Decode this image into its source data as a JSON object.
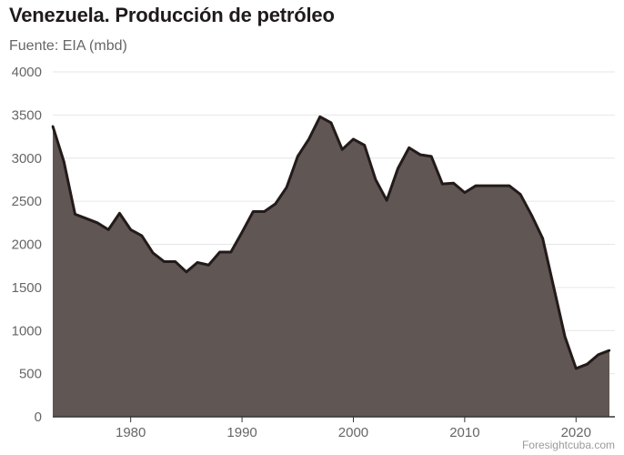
{
  "header": {
    "title": "Venezuela. Producción de petróleo",
    "subtitle": "Fuente: EIA (mbd)"
  },
  "credit": "Foresightcuba.com",
  "colors": {
    "area_fill": "#605654",
    "line": "#231a1a",
    "grid": "#e6e6e6",
    "axis": "#333333",
    "tick_text": "#666666"
  },
  "chart_data": {
    "type": "area",
    "title": "Venezuela. Producción de petróleo",
    "subtitle": "Fuente: EIA (mbd)",
    "xlabel": "",
    "ylabel": "",
    "xlim": [
      1973,
      2023
    ],
    "ylim": [
      0,
      4000
    ],
    "x_ticks": [
      1980,
      1990,
      2000,
      2010,
      2020
    ],
    "y_ticks": [
      0,
      500,
      1000,
      1500,
      2000,
      2500,
      3000,
      3500,
      4000
    ],
    "grid": true,
    "legend": "none",
    "series": [
      {
        "x": [
          1973,
          1974,
          1975,
          1976,
          1977,
          1978,
          1979,
          1980,
          1981,
          1982,
          1983,
          1984,
          1985,
          1986,
          1987,
          1988,
          1989,
          1990,
          1991,
          1992,
          1993,
          1994,
          1995,
          1996,
          1997,
          1998,
          1999,
          2000,
          2001,
          2002,
          2003,
          2004,
          2005,
          2006,
          2007,
          2008,
          2009,
          2010,
          2011,
          2012,
          2013,
          2014,
          2015,
          2016,
          2017,
          2018,
          2019,
          2020,
          2021,
          2022,
          2023
        ],
        "values": [
          3370,
          2960,
          2350,
          2300,
          2250,
          2170,
          2360,
          2170,
          2100,
          1900,
          1800,
          1800,
          1680,
          1790,
          1760,
          1910,
          1910,
          2140,
          2380,
          2380,
          2470,
          2660,
          3020,
          3220,
          3480,
          3410,
          3100,
          3220,
          3150,
          2750,
          2510,
          2880,
          3120,
          3040,
          3020,
          2700,
          2710,
          2600,
          2680,
          2680,
          2680,
          2680,
          2580,
          2340,
          2070,
          1500,
          930,
          560,
          610,
          720,
          770
        ]
      }
    ]
  }
}
